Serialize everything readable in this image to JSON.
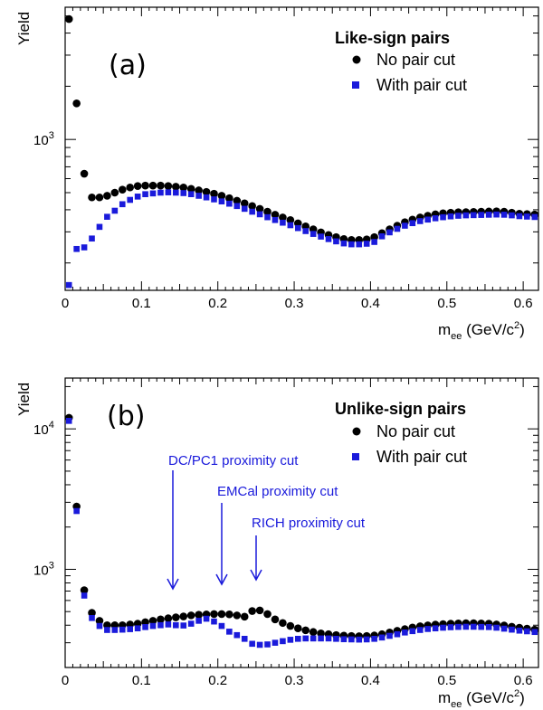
{
  "chart_data": [
    {
      "type": "scatter",
      "panel_label": "(a)",
      "legend_title": "Like-sign pairs",
      "ylabel": "Yield",
      "xlabel": "m",
      "xlabel_sub": "ee",
      "xlabel_unit": " (GeV/c",
      "xlabel_sup": "2",
      "xlabel_close": ")",
      "xlim": [
        0,
        0.62
      ],
      "ylim": [
        140,
        5600
      ],
      "yscale": "log",
      "x_ticks": [
        "0",
        "0.1",
        "0.2",
        "0.3",
        "0.4",
        "0.5",
        "0.6"
      ],
      "y_ticks": [
        {
          "base": "10",
          "exp": "3",
          "value": 1000
        }
      ],
      "legend_position": "top-right",
      "series": [
        {
          "name": "No pair cut",
          "color": "#000000",
          "marker": "circle",
          "x": [
            0.005,
            0.015,
            0.025,
            0.035,
            0.045,
            0.055,
            0.065,
            0.075,
            0.085,
            0.095,
            0.105,
            0.115,
            0.125,
            0.135,
            0.145,
            0.155,
            0.165,
            0.175,
            0.185,
            0.195,
            0.205,
            0.215,
            0.225,
            0.235,
            0.245,
            0.255,
            0.265,
            0.275,
            0.285,
            0.295,
            0.305,
            0.315,
            0.325,
            0.335,
            0.345,
            0.355,
            0.365,
            0.375,
            0.385,
            0.395,
            0.405,
            0.415,
            0.425,
            0.435,
            0.445,
            0.455,
            0.465,
            0.475,
            0.485,
            0.495,
            0.505,
            0.515,
            0.525,
            0.535,
            0.545,
            0.555,
            0.565,
            0.575,
            0.585,
            0.595,
            0.605,
            0.615
          ],
          "y": [
            4800,
            1600,
            640,
            470,
            470,
            480,
            500,
            520,
            535,
            545,
            548,
            548,
            548,
            545,
            540,
            535,
            525,
            515,
            505,
            493,
            480,
            465,
            450,
            435,
            420,
            405,
            390,
            375,
            362,
            350,
            335,
            322,
            310,
            298,
            288,
            280,
            273,
            270,
            270,
            272,
            280,
            295,
            310,
            325,
            340,
            352,
            362,
            370,
            377,
            382,
            385,
            387,
            388,
            389,
            390,
            391,
            392,
            390,
            385,
            380,
            378,
            376
          ]
        },
        {
          "name": "With pair cut",
          "color": "#1a1adb",
          "marker": "square",
          "x": [
            0.005,
            0.015,
            0.025,
            0.035,
            0.045,
            0.055,
            0.065,
            0.075,
            0.085,
            0.095,
            0.105,
            0.115,
            0.125,
            0.135,
            0.145,
            0.155,
            0.165,
            0.175,
            0.185,
            0.195,
            0.205,
            0.215,
            0.225,
            0.235,
            0.245,
            0.255,
            0.265,
            0.275,
            0.285,
            0.295,
            0.305,
            0.315,
            0.325,
            0.335,
            0.345,
            0.355,
            0.365,
            0.375,
            0.385,
            0.395,
            0.405,
            0.415,
            0.425,
            0.435,
            0.445,
            0.455,
            0.465,
            0.475,
            0.485,
            0.495,
            0.505,
            0.515,
            0.525,
            0.535,
            0.545,
            0.555,
            0.565,
            0.575,
            0.585,
            0.595,
            0.605,
            0.615
          ],
          "y": [
            150,
            240,
            245,
            275,
            320,
            365,
            395,
            430,
            455,
            475,
            490,
            495,
            500,
            502,
            500,
            497,
            490,
            480,
            470,
            458,
            446,
            433,
            420,
            405,
            390,
            377,
            363,
            350,
            338,
            327,
            315,
            303,
            292,
            282,
            273,
            265,
            258,
            255,
            255,
            257,
            263,
            283,
            298,
            312,
            325,
            336,
            345,
            352,
            358,
            363,
            367,
            370,
            372,
            373,
            374,
            375,
            376,
            375,
            372,
            368,
            366,
            364
          ]
        }
      ]
    },
    {
      "type": "scatter",
      "panel_label": "(b)",
      "legend_title": "Unlike-sign pairs",
      "ylabel": "Yield",
      "xlabel": "m",
      "xlabel_sub": "ee",
      "xlabel_unit": " (GeV/c",
      "xlabel_sup": "2",
      "xlabel_close": ")",
      "xlim": [
        0,
        0.62
      ],
      "ylim": [
        200,
        23000
      ],
      "yscale": "log",
      "x_ticks": [
        "0",
        "0.1",
        "0.2",
        "0.3",
        "0.4",
        "0.5",
        "0.6"
      ],
      "y_ticks": [
        {
          "base": "10",
          "exp": "3",
          "value": 1000
        },
        {
          "base": "10",
          "exp": "4",
          "value": 10000
        }
      ],
      "legend_position": "top-right",
      "annotations": [
        {
          "text": "DC/PC1 proximity cut",
          "x": 0.142
        },
        {
          "text": "EMCal proximity cut",
          "x": 0.207
        },
        {
          "text": "RICH proximity cut",
          "x": 0.25
        }
      ],
      "series": [
        {
          "name": "No pair cut",
          "color": "#000000",
          "marker": "circle",
          "x": [
            0.005,
            0.015,
            0.025,
            0.035,
            0.045,
            0.055,
            0.065,
            0.075,
            0.085,
            0.095,
            0.105,
            0.115,
            0.125,
            0.135,
            0.145,
            0.155,
            0.165,
            0.175,
            0.185,
            0.195,
            0.205,
            0.215,
            0.225,
            0.235,
            0.245,
            0.255,
            0.265,
            0.275,
            0.285,
            0.295,
            0.305,
            0.315,
            0.325,
            0.335,
            0.345,
            0.355,
            0.365,
            0.375,
            0.385,
            0.395,
            0.405,
            0.415,
            0.425,
            0.435,
            0.445,
            0.455,
            0.465,
            0.475,
            0.485,
            0.495,
            0.505,
            0.515,
            0.525,
            0.535,
            0.545,
            0.555,
            0.565,
            0.575,
            0.585,
            0.595,
            0.605,
            0.615
          ],
          "y": [
            12000,
            2800,
            710,
            490,
            430,
            400,
            400,
            400,
            405,
            410,
            420,
            430,
            440,
            448,
            455,
            462,
            470,
            475,
            478,
            480,
            480,
            478,
            470,
            460,
            505,
            510,
            480,
            440,
            415,
            395,
            380,
            368,
            358,
            350,
            345,
            340,
            337,
            335,
            334,
            335,
            338,
            345,
            355,
            365,
            375,
            385,
            393,
            399,
            404,
            407,
            410,
            412,
            413,
            413,
            412,
            410,
            405,
            398,
            390,
            384,
            378,
            372
          ]
        },
        {
          "name": "With pair cut",
          "color": "#1a1adb",
          "marker": "square",
          "x": [
            0.005,
            0.015,
            0.025,
            0.035,
            0.045,
            0.055,
            0.065,
            0.075,
            0.085,
            0.095,
            0.105,
            0.115,
            0.125,
            0.135,
            0.145,
            0.155,
            0.165,
            0.175,
            0.185,
            0.195,
            0.205,
            0.215,
            0.225,
            0.235,
            0.245,
            0.255,
            0.265,
            0.275,
            0.285,
            0.295,
            0.305,
            0.315,
            0.325,
            0.335,
            0.345,
            0.355,
            0.365,
            0.375,
            0.385,
            0.395,
            0.405,
            0.415,
            0.425,
            0.435,
            0.445,
            0.455,
            0.465,
            0.475,
            0.485,
            0.495,
            0.505,
            0.515,
            0.525,
            0.535,
            0.545,
            0.555,
            0.565,
            0.575,
            0.585,
            0.595,
            0.605,
            0.615
          ],
          "y": [
            11400,
            2600,
            650,
            450,
            395,
            370,
            370,
            372,
            375,
            380,
            388,
            395,
            400,
            405,
            400,
            398,
            410,
            430,
            445,
            425,
            395,
            360,
            340,
            320,
            295,
            290,
            292,
            300,
            308,
            315,
            320,
            322,
            322,
            322,
            322,
            320,
            318,
            317,
            316,
            317,
            320,
            327,
            336,
            345,
            355,
            363,
            370,
            376,
            380,
            384,
            387,
            389,
            390,
            390,
            389,
            388,
            384,
            378,
            372,
            366,
            362,
            358
          ]
        }
      ]
    }
  ]
}
